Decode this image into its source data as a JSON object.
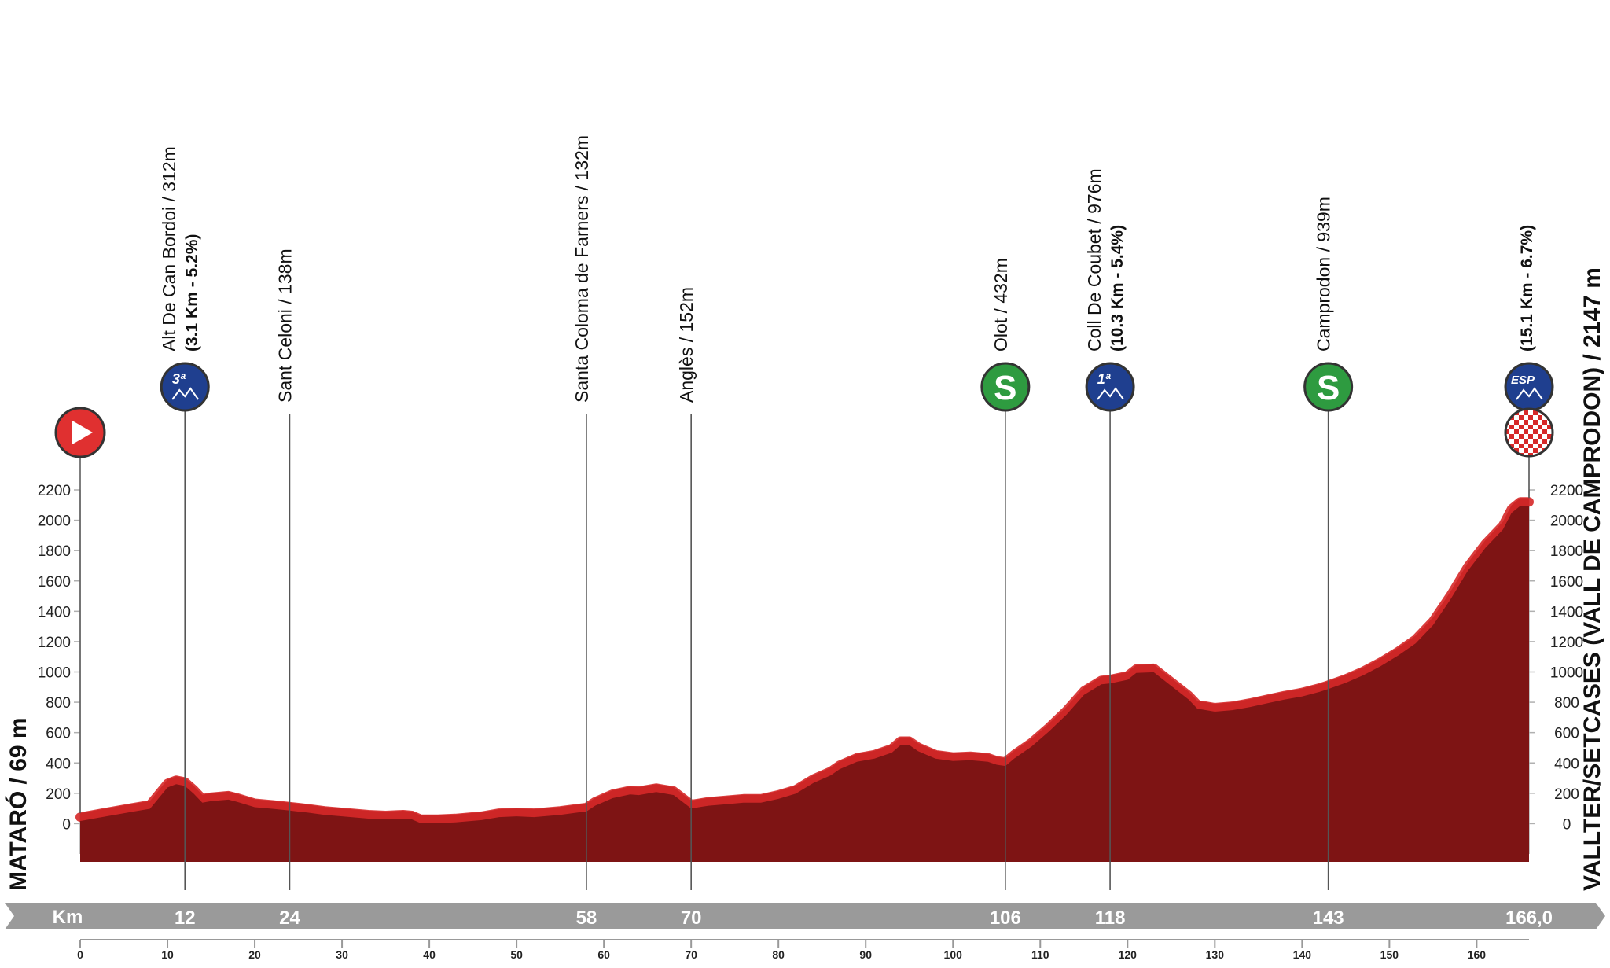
{
  "chart_data": {
    "type": "area",
    "start": {
      "label": "MATARÓ / 69 m"
    },
    "finish": {
      "label": "VALLTER/SETCASES (VALL DE CAMPRODON) / 2147 m"
    },
    "km_axis_label": "Km",
    "ylim": [
      -200,
      2200
    ],
    "y_ticks": [
      0,
      200,
      400,
      600,
      800,
      1000,
      1200,
      1400,
      1600,
      1800,
      2000,
      2200
    ],
    "x_range": [
      0,
      166
    ],
    "x_ticks": [
      0,
      10,
      20,
      30,
      40,
      50,
      60,
      70,
      80,
      90,
      100,
      110,
      120,
      130,
      140,
      150,
      160
    ],
    "highlight_km_labels": [
      "12",
      "24",
      "58",
      "70",
      "106",
      "118",
      "143",
      "166,0"
    ],
    "colors": {
      "profile_fill": "#7e1414",
      "profile_edge": "#d62828",
      "band": "#9a9a9a",
      "climb_icon": "#1f3f8f",
      "sprint_icon": "#2e9b40",
      "start_icon": "#e03030"
    },
    "points": [
      {
        "km": 12,
        "name": "Alt De Can Bordoi / 312m",
        "detail": "(3.1 Km - 5.2%)",
        "icon": "cat3-climb-icon",
        "icon_text": "3ª"
      },
      {
        "km": 24,
        "name": "Sant Celoni / 138m"
      },
      {
        "km": 58,
        "name": "Santa Coloma de Farners / 132m"
      },
      {
        "km": 70,
        "name": "Anglès / 152m"
      },
      {
        "km": 106,
        "name": "Olot / 432m",
        "icon": "sprint-icon",
        "icon_text": "S"
      },
      {
        "km": 118,
        "name": "Coll De Coubet / 976m",
        "detail": "(10.3 Km - 5.4%)",
        "icon": "cat1-climb-icon",
        "icon_text": "1ª"
      },
      {
        "km": 143,
        "name": "Camprodon / 939m",
        "icon": "sprint-icon",
        "icon_text": "S"
      },
      {
        "km": 166,
        "detail": "(15.1 Km - 6.7%)",
        "icon": "special-climb-icon",
        "icon_text": "ESP"
      }
    ],
    "profile": [
      [
        0,
        69
      ],
      [
        3,
        100
      ],
      [
        6,
        130
      ],
      [
        8,
        150
      ],
      [
        9,
        220
      ],
      [
        10,
        290
      ],
      [
        11,
        312
      ],
      [
        12,
        300
      ],
      [
        13,
        250
      ],
      [
        14,
        190
      ],
      [
        15,
        200
      ],
      [
        17,
        210
      ],
      [
        18,
        195
      ],
      [
        20,
        160
      ],
      [
        22,
        150
      ],
      [
        24,
        138
      ],
      [
        26,
        125
      ],
      [
        28,
        110
      ],
      [
        30,
        100
      ],
      [
        33,
        85
      ],
      [
        35,
        80
      ],
      [
        37,
        85
      ],
      [
        38,
        80
      ],
      [
        39,
        55
      ],
      [
        41,
        55
      ],
      [
        43,
        60
      ],
      [
        46,
        75
      ],
      [
        48,
        95
      ],
      [
        50,
        100
      ],
      [
        52,
        95
      ],
      [
        55,
        110
      ],
      [
        57,
        125
      ],
      [
        58,
        132
      ],
      [
        59,
        170
      ],
      [
        61,
        220
      ],
      [
        63,
        245
      ],
      [
        64,
        240
      ],
      [
        66,
        260
      ],
      [
        68,
        240
      ],
      [
        70,
        152
      ],
      [
        72,
        170
      ],
      [
        74,
        180
      ],
      [
        76,
        190
      ],
      [
        78,
        190
      ],
      [
        80,
        215
      ],
      [
        82,
        250
      ],
      [
        84,
        320
      ],
      [
        86,
        370
      ],
      [
        87,
        410
      ],
      [
        89,
        460
      ],
      [
        91,
        480
      ],
      [
        93,
        520
      ],
      [
        94,
        570
      ],
      [
        95,
        570
      ],
      [
        96,
        530
      ],
      [
        98,
        480
      ],
      [
        100,
        465
      ],
      [
        102,
        470
      ],
      [
        104,
        460
      ],
      [
        105,
        440
      ],
      [
        106,
        432
      ],
      [
        107,
        480
      ],
      [
        109,
        560
      ],
      [
        111,
        660
      ],
      [
        113,
        770
      ],
      [
        115,
        900
      ],
      [
        117,
        970
      ],
      [
        118,
        976
      ],
      [
        120,
        1000
      ],
      [
        121,
        1045
      ],
      [
        123,
        1050
      ],
      [
        125,
        960
      ],
      [
        127,
        870
      ],
      [
        128,
        810
      ],
      [
        130,
        790
      ],
      [
        132,
        800
      ],
      [
        134,
        820
      ],
      [
        136,
        845
      ],
      [
        138,
        870
      ],
      [
        140,
        890
      ],
      [
        142,
        920
      ],
      [
        143,
        939
      ],
      [
        145,
        980
      ],
      [
        147,
        1030
      ],
      [
        149,
        1090
      ],
      [
        151,
        1160
      ],
      [
        153,
        1240
      ],
      [
        155,
        1360
      ],
      [
        157,
        1530
      ],
      [
        159,
        1720
      ],
      [
        161,
        1870
      ],
      [
        163,
        1990
      ],
      [
        164,
        2100
      ],
      [
        165,
        2147
      ],
      [
        166,
        2147
      ]
    ]
  }
}
